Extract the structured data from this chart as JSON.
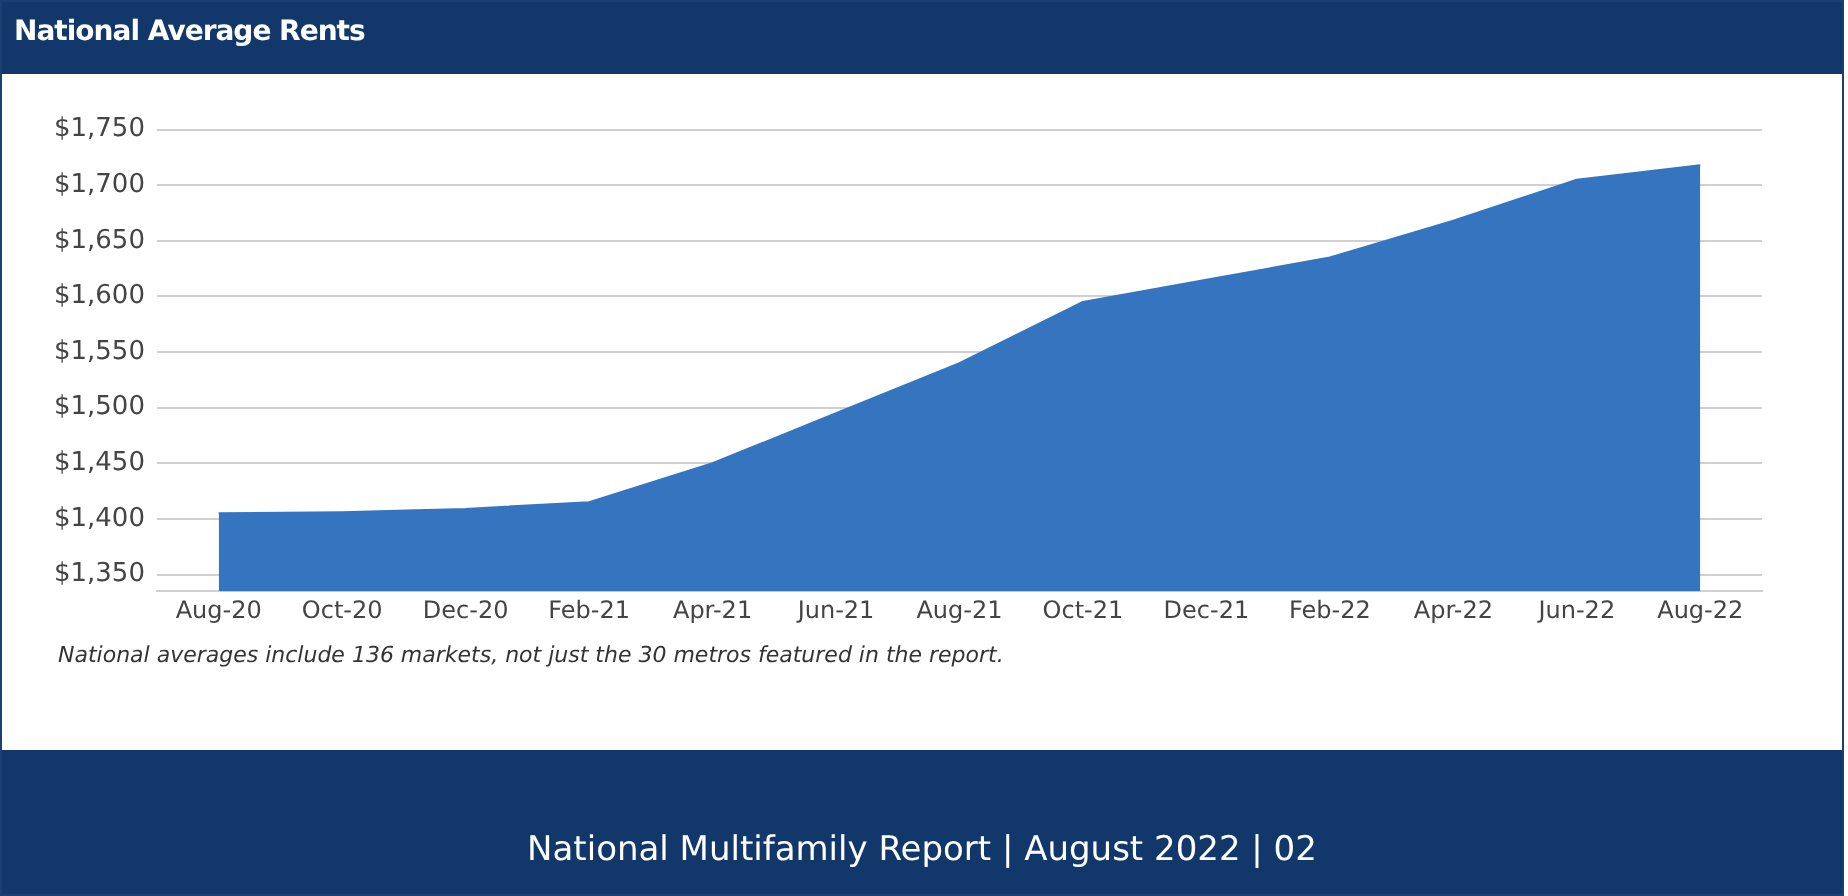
{
  "chart_data": {
    "type": "area",
    "title": "National Average Rents",
    "categories": [
      "Aug-20",
      "Oct-20",
      "Dec-20",
      "Feb-21",
      "Apr-21",
      "Jun-21",
      "Aug-21",
      "Oct-21",
      "Dec-21",
      "Feb-22",
      "Apr-22",
      "Jun-22",
      "Aug-22"
    ],
    "series": [
      {
        "color": "#3575c0",
        "values": [
          1405,
          1406,
          1409,
          1415,
          1450,
          1495,
          1540,
          1595,
          1615,
          1635,
          1668,
          1705,
          1718
        ]
      }
    ],
    "ylim": [
      1335,
      1750
    ],
    "yticks": [
      {
        "value": 1350,
        "label": "$1,350"
      },
      {
        "value": 1400,
        "label": "$1,400"
      },
      {
        "value": 1450,
        "label": "$1,450"
      },
      {
        "value": 1500,
        "label": "$1,500"
      },
      {
        "value": 1550,
        "label": "$1,550"
      },
      {
        "value": 1600,
        "label": "$1,600"
      },
      {
        "value": 1650,
        "label": "$1,650"
      },
      {
        "value": 1700,
        "label": "$1,700"
      },
      {
        "value": 1750,
        "label": "$1,750"
      }
    ],
    "grid": "y",
    "legend": false,
    "annotations": [
      "National averages include 136 markets, not just the 30 metros featured in the report.",
      "National Multifamily Report  |  August 2022  |  02"
    ]
  }
}
